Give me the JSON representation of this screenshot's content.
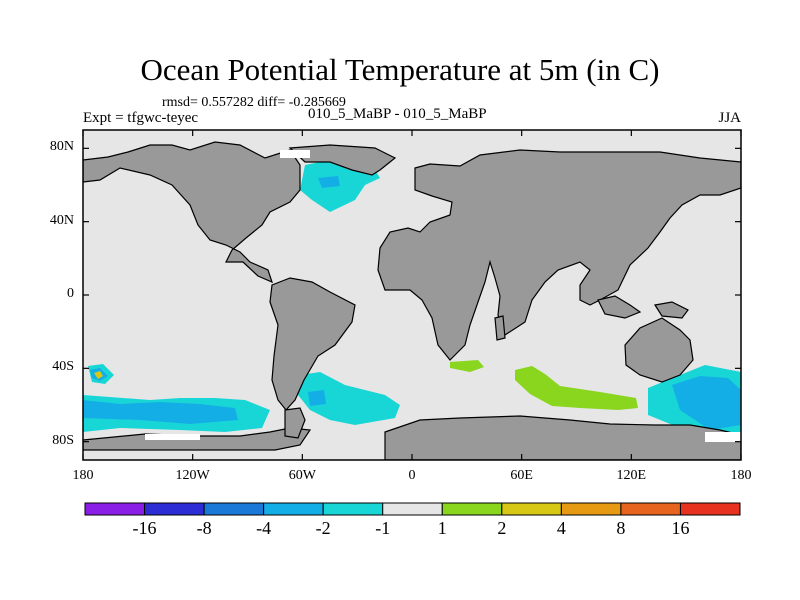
{
  "title": "Ocean Potential Temperature at 5m (in C)",
  "stats": "rmsd= 0.557282 diff= -0.285669",
  "experiment": "Expt = tfgwc-teyec",
  "cases": "010_5_MaBP - 010_5_MaBP",
  "season": "JJA",
  "y_axis": {
    "ticks": [
      {
        "value": 80,
        "label": "80N"
      },
      {
        "value": 40,
        "label": "40N"
      },
      {
        "value": 0,
        "label": "0"
      },
      {
        "value": -40,
        "label": "40S"
      },
      {
        "value": -80,
        "label": "80S"
      }
    ]
  },
  "x_axis": {
    "ticks": [
      {
        "value": -180,
        "label": "180"
      },
      {
        "value": -120,
        "label": "120W"
      },
      {
        "value": -60,
        "label": "60W"
      },
      {
        "value": 0,
        "label": "0"
      },
      {
        "value": 60,
        "label": "60E"
      },
      {
        "value": 120,
        "label": "120E"
      },
      {
        "value": 180,
        "label": "180"
      }
    ]
  },
  "colors": {
    "land": "#999999",
    "ocean": "#e6e6e6",
    "bins": [
      "#8a1ee6",
      "#2d2dd6",
      "#1a78d6",
      "#14aee6",
      "#19d6d6",
      "#e6e6e6",
      "#8ad61e",
      "#d6c814",
      "#e69a14",
      "#e6641e",
      "#e6321e"
    ]
  },
  "colorbar": {
    "labels": [
      "-16",
      "-8",
      "-4",
      "-2",
      "-1",
      "1",
      "2",
      "4",
      "8",
      "16"
    ]
  }
}
